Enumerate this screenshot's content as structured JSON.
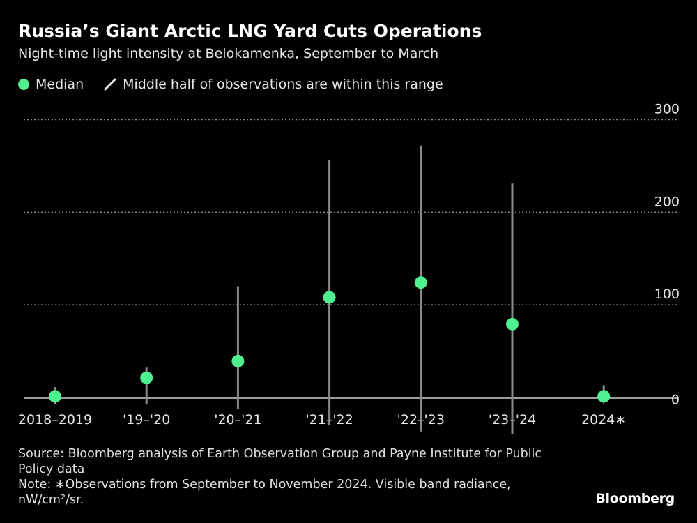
{
  "title": "Russia’s Giant Arctic LNG Yard Cuts Operations",
  "subtitle": "Night-time light intensity at Belokamenka, September to March",
  "legend": {
    "median": "Median",
    "range": "Middle half of observations are within this range"
  },
  "colors": {
    "median": "#4ef08f",
    "range": "#8a8a8a",
    "grid": "#8a8a8a",
    "background": "#000000",
    "text": "#e6e6e6"
  },
  "chart_data": {
    "type": "scatter",
    "categories": [
      "2018–2019",
      "'19–'20",
      "'20–'21",
      "'21–'22",
      "'22–'23",
      "'23–'24",
      "2024∗"
    ],
    "series": [
      {
        "name": "Median",
        "values": [
          1,
          21,
          39,
          108,
          124,
          79,
          1
        ]
      },
      {
        "name": "Middle half of observations are within this range",
        "values": [
          [
            -3,
            11
          ],
          [
            -7,
            32
          ],
          [
            -13,
            120
          ],
          [
            -30,
            256
          ],
          [
            -37,
            272
          ],
          [
            -40,
            231
          ],
          [
            -3,
            13
          ]
        ]
      }
    ],
    "yticks": [
      0,
      100,
      200,
      300
    ],
    "ylim": [
      -15,
      315
    ],
    "grid": true,
    "legend_position": "top-left"
  },
  "footer": {
    "source": "Source: Bloomberg analysis of Earth Observation Group and Payne Institute for Public Policy data",
    "note": "Note: ∗Observations from September to November 2024. Visible band radiance, nW/cm²/sr."
  },
  "brand": "Bloomberg"
}
